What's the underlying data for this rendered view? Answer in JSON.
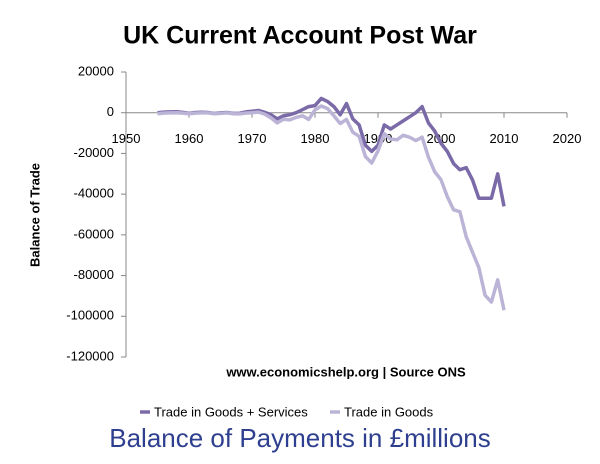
{
  "chart_data": {
    "type": "line",
    "title": "UK Current Account Post War",
    "y_label": "Balance of Trade",
    "source": "www.economicshelp.org | Source ONS",
    "caption": "Balance of Payments in £millions",
    "x": [
      1955,
      1956,
      1957,
      1958,
      1959,
      1960,
      1961,
      1962,
      1963,
      1964,
      1965,
      1966,
      1967,
      1968,
      1969,
      1970,
      1971,
      1972,
      1973,
      1974,
      1975,
      1976,
      1977,
      1978,
      1979,
      1980,
      1981,
      1982,
      1983,
      1984,
      1985,
      1986,
      1987,
      1988,
      1989,
      1990,
      1991,
      1992,
      1993,
      1994,
      1995,
      1996,
      1997,
      1998,
      1999,
      2000,
      2001,
      2002,
      2003,
      2004,
      2005,
      2006,
      2007,
      2008,
      2009,
      2010
    ],
    "series": [
      {
        "name": "Trade in Goods + Services",
        "color": "#7b6aa8",
        "values": [
          0,
          300,
          400,
          500,
          200,
          -300,
          100,
          200,
          100,
          -400,
          -100,
          100,
          -300,
          -300,
          400,
          700,
          1100,
          200,
          -1000,
          -3000,
          -1500,
          -1000,
          0,
          1500,
          3000,
          3500,
          7000,
          5500,
          3000,
          -1000,
          4500,
          -3000,
          -6000,
          -16000,
          -19000,
          -16000,
          -6000,
          -8000,
          -6000,
          -4000,
          -2000,
          0,
          3000,
          -5000,
          -9000,
          -15000,
          -19000,
          -25000,
          -28000,
          -27000,
          -33000,
          -42000,
          -42000,
          -42000,
          -30000,
          -46000
        ]
      },
      {
        "name": "Trade in Goods",
        "color": "#bcb4d6",
        "values": [
          -500,
          -200,
          -100,
          0,
          -200,
          -500,
          -200,
          -100,
          -100,
          -500,
          -300,
          -100,
          -500,
          -600,
          -200,
          0,
          300,
          -700,
          -2500,
          -5000,
          -3200,
          -3500,
          -2300,
          -1500,
          -3300,
          1400,
          3300,
          2000,
          -1500,
          -5300,
          -3300,
          -9600,
          -11600,
          -21500,
          -24700,
          -18800,
          -10300,
          -13000,
          -13300,
          -11100,
          -12000,
          -13700,
          -12000,
          -21800,
          -29000,
          -32900,
          -41200,
          -47700,
          -48600,
          -60900,
          -68500,
          -76000,
          -89700,
          -93000,
          -82100,
          -97000
        ]
      }
    ],
    "xlim": [
      1950,
      2020
    ],
    "xticks": [
      1950,
      1960,
      1970,
      1980,
      1990,
      2000,
      2010,
      2020
    ],
    "ylim": [
      -120000,
      20000
    ],
    "yticks": [
      -120000,
      -100000,
      -80000,
      -60000,
      -40000,
      -20000,
      0,
      20000
    ],
    "grid": false,
    "legend": "bottom"
  }
}
